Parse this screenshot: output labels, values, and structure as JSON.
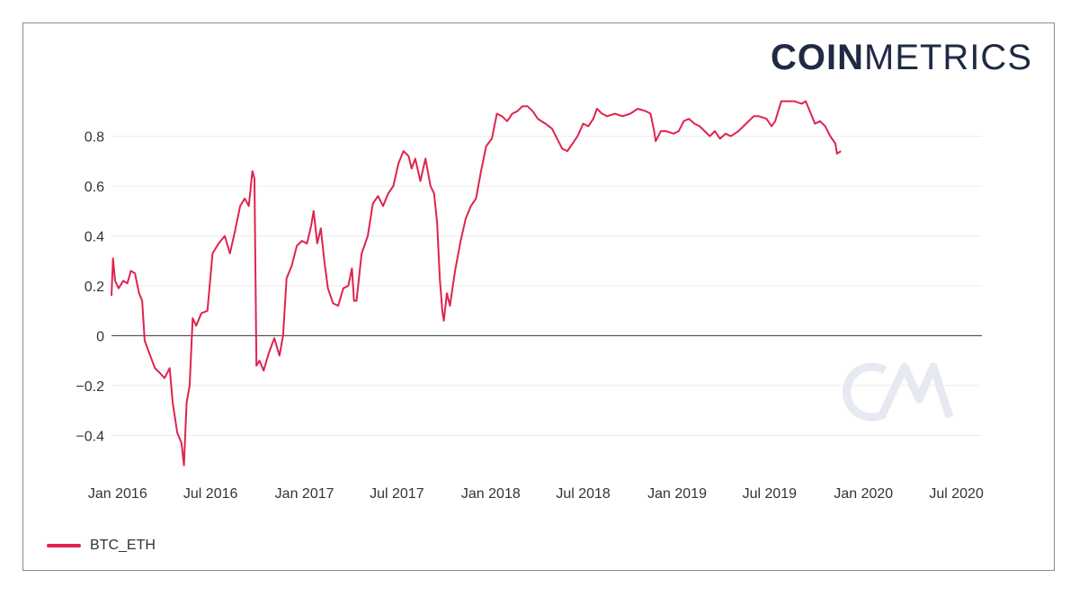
{
  "brand": {
    "bold": "COIN",
    "light": "METRICS"
  },
  "colors": {
    "series": "#e0234e",
    "zero_line": "#333333",
    "grid": "#ececec",
    "watermark": "#e6e9f1",
    "logo": "#1f2a44"
  },
  "chart_data": {
    "type": "line",
    "title": "",
    "xlabel": "",
    "ylabel": "",
    "grid": true,
    "legend_position": "bottom-left",
    "xlim": [
      "2015-12-20",
      "2020-08-20"
    ],
    "ylim": [
      -0.55,
      1.0
    ],
    "y_ticks": [
      -0.4,
      -0.2,
      0,
      0.2,
      0.4,
      0.6,
      0.8
    ],
    "y_tick_labels": [
      "−0.4",
      "−0.2",
      "0",
      "0.2",
      "0.4",
      "0.6",
      "0.8"
    ],
    "x_ticks": [
      "2016-01-01",
      "2016-07-01",
      "2017-01-01",
      "2017-07-01",
      "2018-01-01",
      "2018-07-01",
      "2019-01-01",
      "2019-07-01",
      "2020-01-01",
      "2020-07-01"
    ],
    "x_tick_labels": [
      "Jan 2016",
      "Jul 2016",
      "Jan 2017",
      "Jul 2017",
      "Jan 2018",
      "Jul 2018",
      "Jan 2019",
      "Jul 2019",
      "Jan 2020",
      "Jul 2020"
    ],
    "series": [
      {
        "name": "BTC_ETH",
        "points": [
          [
            "2015-12-20",
            0.16
          ],
          [
            "2015-12-23",
            0.31
          ],
          [
            "2015-12-27",
            0.22
          ],
          [
            "2016-01-03",
            0.19
          ],
          [
            "2016-01-12",
            0.22
          ],
          [
            "2016-01-20",
            0.21
          ],
          [
            "2016-01-27",
            0.26
          ],
          [
            "2016-02-04",
            0.25
          ],
          [
            "2016-02-12",
            0.17
          ],
          [
            "2016-02-18",
            0.14
          ],
          [
            "2016-02-23",
            -0.02
          ],
          [
            "2016-03-03",
            -0.07
          ],
          [
            "2016-03-14",
            -0.13
          ],
          [
            "2016-03-24",
            -0.15
          ],
          [
            "2016-04-02",
            -0.17
          ],
          [
            "2016-04-12",
            -0.13
          ],
          [
            "2016-04-18",
            -0.27
          ],
          [
            "2016-04-27",
            -0.39
          ],
          [
            "2016-05-05",
            -0.43
          ],
          [
            "2016-05-10",
            -0.52
          ],
          [
            "2016-05-15",
            -0.27
          ],
          [
            "2016-05-21",
            -0.2
          ],
          [
            "2016-05-27",
            0.07
          ],
          [
            "2016-06-03",
            0.04
          ],
          [
            "2016-06-13",
            0.09
          ],
          [
            "2016-06-25",
            0.1
          ],
          [
            "2016-07-05",
            0.33
          ],
          [
            "2016-07-17",
            0.37
          ],
          [
            "2016-07-29",
            0.4
          ],
          [
            "2016-08-08",
            0.33
          ],
          [
            "2016-08-18",
            0.42
          ],
          [
            "2016-08-28",
            0.52
          ],
          [
            "2016-09-06",
            0.55
          ],
          [
            "2016-09-14",
            0.52
          ],
          [
            "2016-09-21",
            0.66
          ],
          [
            "2016-09-25",
            0.63
          ],
          [
            "2016-09-29",
            -0.12
          ],
          [
            "2016-10-05",
            -0.1
          ],
          [
            "2016-10-13",
            -0.14
          ],
          [
            "2016-10-23",
            -0.07
          ],
          [
            "2016-11-03",
            -0.01
          ],
          [
            "2016-11-13",
            -0.08
          ],
          [
            "2016-11-20",
            0.0
          ],
          [
            "2016-11-27",
            0.23
          ],
          [
            "2016-12-07",
            0.28
          ],
          [
            "2016-12-17",
            0.36
          ],
          [
            "2016-12-27",
            0.38
          ],
          [
            "2017-01-06",
            0.37
          ],
          [
            "2017-01-14",
            0.44
          ],
          [
            "2017-01-19",
            0.5
          ],
          [
            "2017-01-26",
            0.37
          ],
          [
            "2017-02-02",
            0.43
          ],
          [
            "2017-02-09",
            0.3
          ],
          [
            "2017-02-16",
            0.19
          ],
          [
            "2017-02-26",
            0.13
          ],
          [
            "2017-03-08",
            0.12
          ],
          [
            "2017-03-18",
            0.19
          ],
          [
            "2017-03-28",
            0.2
          ],
          [
            "2017-04-04",
            0.27
          ],
          [
            "2017-04-08",
            0.14
          ],
          [
            "2017-04-13",
            0.14
          ],
          [
            "2017-04-23",
            0.33
          ],
          [
            "2017-05-05",
            0.4
          ],
          [
            "2017-05-15",
            0.53
          ],
          [
            "2017-05-25",
            0.56
          ],
          [
            "2017-06-04",
            0.52
          ],
          [
            "2017-06-14",
            0.57
          ],
          [
            "2017-06-24",
            0.6
          ],
          [
            "2017-07-04",
            0.69
          ],
          [
            "2017-07-14",
            0.74
          ],
          [
            "2017-07-24",
            0.72
          ],
          [
            "2017-07-30",
            0.67
          ],
          [
            "2017-08-06",
            0.71
          ],
          [
            "2017-08-16",
            0.62
          ],
          [
            "2017-08-26",
            0.71
          ],
          [
            "2017-09-05",
            0.6
          ],
          [
            "2017-09-12",
            0.57
          ],
          [
            "2017-09-18",
            0.45
          ],
          [
            "2017-09-23",
            0.23
          ],
          [
            "2017-09-28",
            0.1
          ],
          [
            "2017-10-01",
            0.06
          ],
          [
            "2017-10-07",
            0.17
          ],
          [
            "2017-10-13",
            0.12
          ],
          [
            "2017-10-23",
            0.26
          ],
          [
            "2017-11-03",
            0.38
          ],
          [
            "2017-11-13",
            0.47
          ],
          [
            "2017-11-23",
            0.52
          ],
          [
            "2017-12-03",
            0.55
          ],
          [
            "2017-12-13",
            0.66
          ],
          [
            "2017-12-23",
            0.76
          ],
          [
            "2018-01-03",
            0.79
          ],
          [
            "2018-01-13",
            0.89
          ],
          [
            "2018-01-23",
            0.88
          ],
          [
            "2018-02-02",
            0.86
          ],
          [
            "2018-02-12",
            0.89
          ],
          [
            "2018-02-22",
            0.9
          ],
          [
            "2018-03-04",
            0.92
          ],
          [
            "2018-03-14",
            0.92
          ],
          [
            "2018-03-24",
            0.9
          ],
          [
            "2018-04-03",
            0.87
          ],
          [
            "2018-04-18",
            0.85
          ],
          [
            "2018-05-01",
            0.83
          ],
          [
            "2018-05-11",
            0.79
          ],
          [
            "2018-05-21",
            0.75
          ],
          [
            "2018-05-31",
            0.74
          ],
          [
            "2018-06-10",
            0.77
          ],
          [
            "2018-06-20",
            0.8
          ],
          [
            "2018-07-01",
            0.85
          ],
          [
            "2018-07-11",
            0.84
          ],
          [
            "2018-07-21",
            0.87
          ],
          [
            "2018-07-28",
            0.91
          ],
          [
            "2018-08-07",
            0.89
          ],
          [
            "2018-08-17",
            0.88
          ],
          [
            "2018-09-01",
            0.89
          ],
          [
            "2018-09-16",
            0.88
          ],
          [
            "2018-10-01",
            0.89
          ],
          [
            "2018-10-16",
            0.91
          ],
          [
            "2018-11-01",
            0.9
          ],
          [
            "2018-11-10",
            0.89
          ],
          [
            "2018-11-17",
            0.82
          ],
          [
            "2018-11-20",
            0.78
          ],
          [
            "2018-11-30",
            0.82
          ],
          [
            "2018-12-10",
            0.82
          ],
          [
            "2018-12-25",
            0.81
          ],
          [
            "2019-01-04",
            0.82
          ],
          [
            "2019-01-14",
            0.86
          ],
          [
            "2019-01-24",
            0.87
          ],
          [
            "2019-02-04",
            0.85
          ],
          [
            "2019-02-14",
            0.84
          ],
          [
            "2019-02-24",
            0.82
          ],
          [
            "2019-03-06",
            0.8
          ],
          [
            "2019-03-16",
            0.82
          ],
          [
            "2019-03-26",
            0.79
          ],
          [
            "2019-04-06",
            0.81
          ],
          [
            "2019-04-16",
            0.8
          ],
          [
            "2019-05-01",
            0.82
          ],
          [
            "2019-05-16",
            0.85
          ],
          [
            "2019-05-31",
            0.88
          ],
          [
            "2019-06-10",
            0.88
          ],
          [
            "2019-06-25",
            0.87
          ],
          [
            "2019-07-05",
            0.84
          ],
          [
            "2019-07-12",
            0.86
          ],
          [
            "2019-07-24",
            0.94
          ],
          [
            "2019-08-03",
            0.94
          ],
          [
            "2019-08-18",
            0.94
          ],
          [
            "2019-09-02",
            0.93
          ],
          [
            "2019-09-10",
            0.94
          ],
          [
            "2019-09-18",
            0.9
          ],
          [
            "2019-09-28",
            0.85
          ],
          [
            "2019-10-08",
            0.86
          ],
          [
            "2019-10-18",
            0.84
          ],
          [
            "2019-10-28",
            0.8
          ],
          [
            "2019-11-07",
            0.77
          ],
          [
            "2019-11-10",
            0.73
          ],
          [
            "2019-11-18",
            0.74
          ]
        ]
      }
    ]
  },
  "legend": {
    "label": "BTC_ETH"
  }
}
